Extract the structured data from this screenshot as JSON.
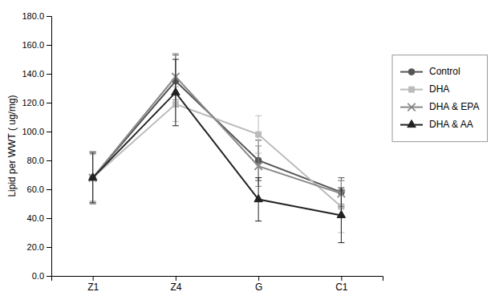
{
  "chart_data": {
    "type": "line",
    "categories": [
      "Z1",
      "Z4",
      "G",
      "C1"
    ],
    "series": [
      {
        "name": "Control",
        "color": "#555555",
        "marker": "circle",
        "values": [
          68,
          135,
          80,
          58
        ],
        "yerr": [
          18,
          18,
          14,
          10
        ]
      },
      {
        "name": "DHA",
        "color": "#bbbbbb",
        "marker": "square",
        "values": [
          68,
          119,
          98,
          48
        ],
        "yerr": [
          16,
          12,
          13,
          18
        ]
      },
      {
        "name": "DHA & EPA",
        "color": "#888888",
        "marker": "x",
        "values": [
          68,
          138,
          76,
          57
        ],
        "yerr": [
          18,
          16,
          14,
          9
        ]
      },
      {
        "name": "DHA & AA",
        "color": "#222222",
        "marker": "triangle",
        "values": [
          68,
          127,
          53,
          42
        ],
        "yerr": [
          17,
          23,
          15,
          19
        ]
      }
    ],
    "ylabel": "Lipid per WWT ( ug/mg)",
    "ylim": [
      0,
      180
    ],
    "yticks": [
      {
        "value": 0,
        "label": "0.0"
      },
      {
        "value": 20,
        "label": "20.0"
      },
      {
        "value": 40,
        "label": "40.0"
      },
      {
        "value": 60,
        "label": "60.0"
      },
      {
        "value": 80,
        "label": "80.0"
      },
      {
        "value": 100,
        "label": "100.0"
      },
      {
        "value": 120,
        "label": "120.0"
      },
      {
        "value": 140,
        "label": "140.0"
      },
      {
        "value": 160,
        "label": "160.0"
      },
      {
        "value": 180,
        "label": "180.0"
      }
    ],
    "grid": false,
    "legend": "right"
  }
}
